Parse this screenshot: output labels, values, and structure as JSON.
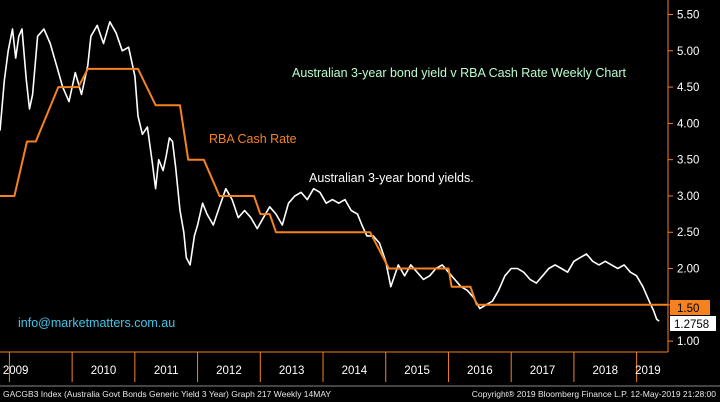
{
  "chart_data": {
    "type": "line",
    "title": "Australian 3-year bond yield v RBA Cash Rate Weekly Chart",
    "x_ticks": [
      "2009",
      "2010",
      "2011",
      "2012",
      "2013",
      "2014",
      "2015",
      "2016",
      "2017",
      "2018",
      "2019"
    ],
    "y_ticks": [
      "5.50",
      "5.00",
      "4.50",
      "4.00",
      "3.50",
      "3.00",
      "2.50",
      "2.00",
      "1.50",
      "1.00"
    ],
    "ylim": [
      0.85,
      5.7
    ],
    "xlim": [
      2008.85,
      2019.5
    ],
    "grid": false,
    "series": [
      {
        "name": "Australian 3-year bond yields.",
        "color": "#ffffff",
        "points": [
          [
            2008.85,
            3.9
          ],
          [
            2008.92,
            4.6
          ],
          [
            2008.98,
            5.0
          ],
          [
            2009.05,
            5.3
          ],
          [
            2009.1,
            4.9
          ],
          [
            2009.15,
            5.2
          ],
          [
            2009.2,
            5.3
          ],
          [
            2009.27,
            4.6
          ],
          [
            2009.32,
            4.2
          ],
          [
            2009.37,
            4.4
          ],
          [
            2009.45,
            5.2
          ],
          [
            2009.55,
            5.3
          ],
          [
            2009.65,
            5.1
          ],
          [
            2009.75,
            4.8
          ],
          [
            2009.85,
            4.5
          ],
          [
            2009.95,
            4.3
          ],
          [
            2010.05,
            4.7
          ],
          [
            2010.15,
            4.4
          ],
          [
            2010.25,
            4.8
          ],
          [
            2010.3,
            5.2
          ],
          [
            2010.4,
            5.35
          ],
          [
            2010.5,
            5.1
          ],
          [
            2010.6,
            5.4
          ],
          [
            2010.7,
            5.25
          ],
          [
            2010.8,
            5.0
          ],
          [
            2010.9,
            5.05
          ],
          [
            2011.0,
            4.65
          ],
          [
            2011.05,
            4.1
          ],
          [
            2011.12,
            3.85
          ],
          [
            2011.2,
            3.95
          ],
          [
            2011.28,
            3.45
          ],
          [
            2011.33,
            3.1
          ],
          [
            2011.38,
            3.5
          ],
          [
            2011.45,
            3.35
          ],
          [
            2011.5,
            3.55
          ],
          [
            2011.55,
            3.8
          ],
          [
            2011.6,
            3.75
          ],
          [
            2011.65,
            3.4
          ],
          [
            2011.72,
            2.8
          ],
          [
            2011.78,
            2.5
          ],
          [
            2011.82,
            2.15
          ],
          [
            2011.88,
            2.05
          ],
          [
            2011.95,
            2.45
          ],
          [
            2012.0,
            2.6
          ],
          [
            2012.08,
            2.9
          ],
          [
            2012.15,
            2.75
          ],
          [
            2012.25,
            2.6
          ],
          [
            2012.35,
            2.85
          ],
          [
            2012.45,
            3.1
          ],
          [
            2012.55,
            2.95
          ],
          [
            2012.65,
            2.7
          ],
          [
            2012.75,
            2.8
          ],
          [
            2012.85,
            2.7
          ],
          [
            2012.95,
            2.55
          ],
          [
            2013.05,
            2.7
          ],
          [
            2013.15,
            2.85
          ],
          [
            2013.25,
            2.75
          ],
          [
            2013.35,
            2.6
          ],
          [
            2013.45,
            2.9
          ],
          [
            2013.55,
            3.0
          ],
          [
            2013.65,
            3.05
          ],
          [
            2013.75,
            2.95
          ],
          [
            2013.85,
            3.1
          ],
          [
            2013.95,
            3.05
          ],
          [
            2014.05,
            2.9
          ],
          [
            2014.15,
            2.95
          ],
          [
            2014.25,
            2.9
          ],
          [
            2014.35,
            2.95
          ],
          [
            2014.45,
            2.8
          ],
          [
            2014.55,
            2.75
          ],
          [
            2014.62,
            2.6
          ],
          [
            2014.7,
            2.45
          ],
          [
            2014.8,
            2.45
          ],
          [
            2014.9,
            2.35
          ],
          [
            2015.0,
            2.1
          ],
          [
            2015.08,
            1.75
          ],
          [
            2015.12,
            1.85
          ],
          [
            2015.2,
            2.05
          ],
          [
            2015.3,
            1.9
          ],
          [
            2015.4,
            2.05
          ],
          [
            2015.5,
            1.95
          ],
          [
            2015.6,
            1.85
          ],
          [
            2015.7,
            1.9
          ],
          [
            2015.8,
            2.0
          ],
          [
            2015.9,
            2.05
          ],
          [
            2016.0,
            1.95
          ],
          [
            2016.1,
            1.85
          ],
          [
            2016.2,
            1.75
          ],
          [
            2016.3,
            1.7
          ],
          [
            2016.4,
            1.6
          ],
          [
            2016.5,
            1.45
          ],
          [
            2016.6,
            1.5
          ],
          [
            2016.7,
            1.55
          ],
          [
            2016.8,
            1.7
          ],
          [
            2016.9,
            1.9
          ],
          [
            2017.0,
            2.0
          ],
          [
            2017.1,
            2.0
          ],
          [
            2017.2,
            1.95
          ],
          [
            2017.3,
            1.85
          ],
          [
            2017.4,
            1.8
          ],
          [
            2017.5,
            1.9
          ],
          [
            2017.6,
            2.0
          ],
          [
            2017.7,
            2.05
          ],
          [
            2017.8,
            2.0
          ],
          [
            2017.9,
            1.95
          ],
          [
            2018.0,
            2.1
          ],
          [
            2018.1,
            2.15
          ],
          [
            2018.2,
            2.2
          ],
          [
            2018.3,
            2.1
          ],
          [
            2018.4,
            2.05
          ],
          [
            2018.5,
            2.1
          ],
          [
            2018.6,
            2.05
          ],
          [
            2018.7,
            2.0
          ],
          [
            2018.8,
            2.05
          ],
          [
            2018.9,
            1.95
          ],
          [
            2019.0,
            1.9
          ],
          [
            2019.1,
            1.75
          ],
          [
            2019.2,
            1.55
          ],
          [
            2019.27,
            1.42
          ],
          [
            2019.32,
            1.3
          ],
          [
            2019.36,
            1.2758
          ]
        ]
      },
      {
        "name": "RBA Cash Rate",
        "color": "#f5821f",
        "points": [
          [
            2008.85,
            3.0
          ],
          [
            2009.08,
            3.0
          ],
          [
            2009.28,
            3.75
          ],
          [
            2009.42,
            3.75
          ],
          [
            2009.78,
            4.5
          ],
          [
            2010.1,
            4.5
          ],
          [
            2010.25,
            4.75
          ],
          [
            2010.3,
            4.75
          ],
          [
            2011.05,
            4.75
          ],
          [
            2011.33,
            4.25
          ],
          [
            2011.72,
            4.25
          ],
          [
            2011.85,
            3.5
          ],
          [
            2012.1,
            3.5
          ],
          [
            2012.35,
            3.0
          ],
          [
            2012.9,
            3.0
          ],
          [
            2013.0,
            2.75
          ],
          [
            2013.15,
            2.75
          ],
          [
            2013.25,
            2.5
          ],
          [
            2014.75,
            2.5
          ],
          [
            2015.05,
            2.0
          ],
          [
            2015.85,
            2.0
          ],
          [
            2016.0,
            2.0
          ],
          [
            2016.05,
            1.75
          ],
          [
            2016.35,
            1.75
          ],
          [
            2016.45,
            1.5
          ],
          [
            2019.5,
            1.5
          ]
        ]
      }
    ],
    "annotations": [
      "Australian 3-year bond yield v RBA Cash Rate Weekly Chart",
      "RBA Cash Rate",
      "Australian 3-year bond yields.",
      "info@marketmatters.com.au"
    ],
    "value_labels": {
      "cash_rate_last": "1.50",
      "bond_last": "1.2758"
    }
  },
  "colors": {
    "background": "#000000",
    "axis": "#f5821f",
    "title_text": "#b8ffd0",
    "watermark": "#3fc6e8",
    "bond_line": "#ffffff",
    "cash_line": "#f5821f"
  },
  "footer": {
    "left": "GACGB3 Index (Australia Govt Bonds Generic Yield 3 Year) Graph 217  Weekly 14MAY",
    "right": "Copyright® 2019 Bloomberg Finance L.P.     12-May-2019 21:28:00"
  }
}
